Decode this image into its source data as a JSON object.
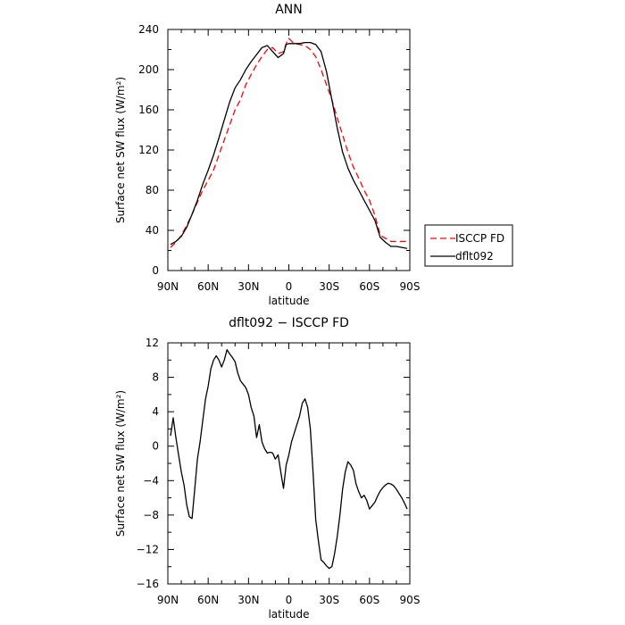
{
  "chart_data": [
    {
      "type": "line",
      "title": "ANN",
      "xlabel": "latitude",
      "ylabel": "Surface net SW flux (W/m²)",
      "xlim": [
        90,
        -90
      ],
      "ylim": [
        0,
        240
      ],
      "xticks": [
        90,
        60,
        30,
        0,
        -30,
        -60,
        -90
      ],
      "xticklabels": [
        "90N",
        "60N",
        "30N",
        "0",
        "30S",
        "60S",
        "90S"
      ],
      "yticks": [
        0,
        40,
        80,
        120,
        160,
        200,
        240
      ],
      "yticklabels": [
        "0",
        "40",
        "80",
        "120",
        "160",
        "200",
        "240"
      ],
      "legend": "right",
      "series": [
        {
          "name": "ISCCP FD",
          "color": "#ff0000",
          "dash": true,
          "x": [
            88,
            84,
            80,
            76,
            72,
            68,
            64,
            60,
            56,
            52,
            48,
            44,
            40,
            36,
            32,
            28,
            24,
            20,
            16,
            12,
            8,
            4,
            2,
            0,
            -4,
            -8,
            -12,
            -16,
            -20,
            -24,
            -28,
            -32,
            -36,
            -40,
            -44,
            -48,
            -52,
            -56,
            -60,
            -64,
            -68,
            -72,
            -76,
            -80,
            -84,
            -88
          ],
          "y": [
            23,
            28,
            35,
            45,
            56,
            68,
            80,
            90,
            100,
            115,
            130,
            145,
            160,
            170,
            185,
            195,
            205,
            213,
            220,
            222,
            216,
            218,
            226,
            231,
            226,
            225,
            224,
            220,
            213,
            200,
            185,
            170,
            152,
            135,
            118,
            103,
            92,
            80,
            70,
            55,
            35,
            32,
            29,
            29,
            29,
            29
          ]
        },
        {
          "name": "dflt092",
          "color": "#000000",
          "dash": false,
          "x": [
            88,
            84,
            80,
            76,
            72,
            68,
            64,
            60,
            56,
            52,
            48,
            44,
            40,
            36,
            32,
            28,
            24,
            20,
            16,
            12,
            8,
            4,
            2,
            0,
            -4,
            -8,
            -12,
            -16,
            -20,
            -24,
            -28,
            -32,
            -36,
            -40,
            -44,
            -48,
            -52,
            -56,
            -60,
            -64,
            -68,
            -72,
            -76,
            -80,
            -84,
            -88
          ],
          "y": [
            26,
            29,
            34,
            43,
            56,
            70,
            86,
            100,
            115,
            132,
            150,
            168,
            182,
            190,
            200,
            208,
            215,
            222,
            224,
            218,
            212,
            216,
            225,
            226,
            226,
            226,
            227,
            227,
            225,
            218,
            198,
            170,
            142,
            118,
            102,
            90,
            80,
            70,
            60,
            50,
            33,
            28,
            24,
            24,
            23,
            22
          ]
        }
      ]
    },
    {
      "type": "line",
      "title": "dflt092 − ISCCP FD",
      "xlabel": "latitude",
      "ylabel": "Surface net SW flux (W/m²)",
      "xlim": [
        90,
        -90
      ],
      "ylim": [
        -16,
        12
      ],
      "xticks": [
        90,
        60,
        30,
        0,
        -30,
        -60,
        -90
      ],
      "xticklabels": [
        "90N",
        "60N",
        "30N",
        "0",
        "30S",
        "60S",
        "90S"
      ],
      "yticks": [
        -16,
        -12,
        -8,
        -4,
        0,
        4,
        8,
        12
      ],
      "yticklabels": [
        "−16",
        "−12",
        "−8",
        "−4",
        "0",
        "4",
        "8",
        "12"
      ],
      "series": [
        {
          "color": "#000000",
          "dash": false,
          "x": [
            88,
            86,
            84,
            82,
            80,
            78,
            76,
            74,
            72,
            70,
            68,
            66,
            64,
            62,
            60,
            58,
            56,
            54,
            52,
            50,
            48,
            46,
            44,
            42,
            40,
            38,
            36,
            34,
            32,
            30,
            28,
            26,
            24,
            22,
            20,
            18,
            16,
            14,
            12,
            10,
            8,
            6,
            4,
            2,
            0,
            -2,
            -4,
            -6,
            -8,
            -10,
            -12,
            -14,
            -16,
            -18,
            -20,
            -22,
            -24,
            -26,
            -28,
            -30,
            -32,
            -34,
            -36,
            -38,
            -40,
            -42,
            -44,
            -46,
            -48,
            -50,
            -52,
            -54,
            -56,
            -58,
            -60,
            -62,
            -64,
            -66,
            -68,
            -70,
            -72,
            -74,
            -76,
            -78,
            -80,
            -82,
            -84,
            -86,
            -88
          ],
          "y": [
            1.2,
            3.3,
            1.0,
            -1.0,
            -3.0,
            -4.5,
            -6.8,
            -8.2,
            -8.4,
            -5.0,
            -1.5,
            0.5,
            3.0,
            5.5,
            7.0,
            9.0,
            10.0,
            10.5,
            10.0,
            9.2,
            10.0,
            11.2,
            10.7,
            10.3,
            9.8,
            8.5,
            7.6,
            7.2,
            6.8,
            6.0,
            4.5,
            3.5,
            1.0,
            2.5,
            0.5,
            -0.3,
            -0.8,
            -0.7,
            -0.8,
            -1.5,
            -1.0,
            -3.0,
            -4.9,
            -2.2,
            -1.0,
            0.5,
            1.5,
            2.5,
            3.5,
            5.0,
            5.5,
            4.5,
            2.0,
            -3.0,
            -8.5,
            -11.0,
            -13.2,
            -13.5,
            -13.9,
            -14.2,
            -14.0,
            -12.5,
            -10.5,
            -8.0,
            -5.0,
            -3.0,
            -1.8,
            -2.2,
            -2.8,
            -4.4,
            -5.3,
            -6.0,
            -5.7,
            -6.3,
            -7.3,
            -6.9,
            -6.5,
            -5.8,
            -5.2,
            -4.8,
            -4.5,
            -4.3,
            -4.4,
            -4.6,
            -5.0,
            -5.5,
            -6.0,
            -6.6,
            -7.3
          ]
        }
      ]
    }
  ]
}
